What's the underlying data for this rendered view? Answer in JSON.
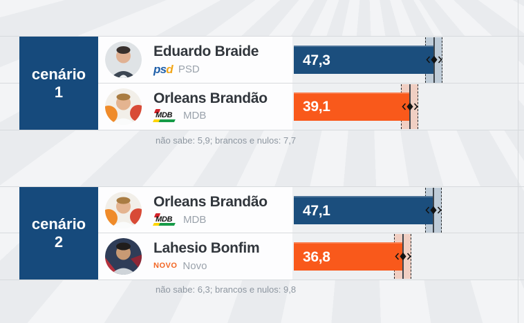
{
  "chart_data": {
    "type": "bar",
    "orientation": "horizontal",
    "error_margin_points": 2.9,
    "scenarios": [
      {
        "label_word": "cenário",
        "label_number": "1",
        "candidates": [
          {
            "name": "Eduardo Braide",
            "party": "PSD",
            "party_logo": {
              "part1": "ps",
              "part2": "d"
            },
            "value": 47.3,
            "value_display": "47,3",
            "bar_color": "#1b4e7d",
            "band_color": "rgba(27,78,125,0.22)"
          },
          {
            "name": "Orleans Brandão",
            "party": "MDB",
            "party_logo": {
              "text": "MDB"
            },
            "value": 39.1,
            "value_display": "39,1",
            "bar_color": "#f9591b",
            "band_color": "rgba(249,89,27,0.22)"
          }
        ],
        "footnote": "não sabe: 5,9; brancos e nulos: 7,7",
        "nao_sabe": 5.9,
        "brancos_e_nulos": 7.7
      },
      {
        "label_word": "cenário",
        "label_number": "2",
        "candidates": [
          {
            "name": "Orleans Brandão",
            "party": "MDB",
            "party_logo": {
              "text": "MDB"
            },
            "value": 47.1,
            "value_display": "47,1",
            "bar_color": "#1b4e7d",
            "band_color": "rgba(27,78,125,0.22)"
          },
          {
            "name": "Lahesio Bonfim",
            "party": "Novo",
            "party_logo": {
              "text": "NOVO"
            },
            "value": 36.8,
            "value_display": "36,8",
            "bar_color": "#f9591b",
            "band_color": "rgba(249,89,27,0.22)"
          }
        ],
        "footnote": "não sabe: 6,3; brancos e nulos: 9,8",
        "nao_sabe": 6.3,
        "brancos_e_nulos": 9.8
      }
    ]
  }
}
